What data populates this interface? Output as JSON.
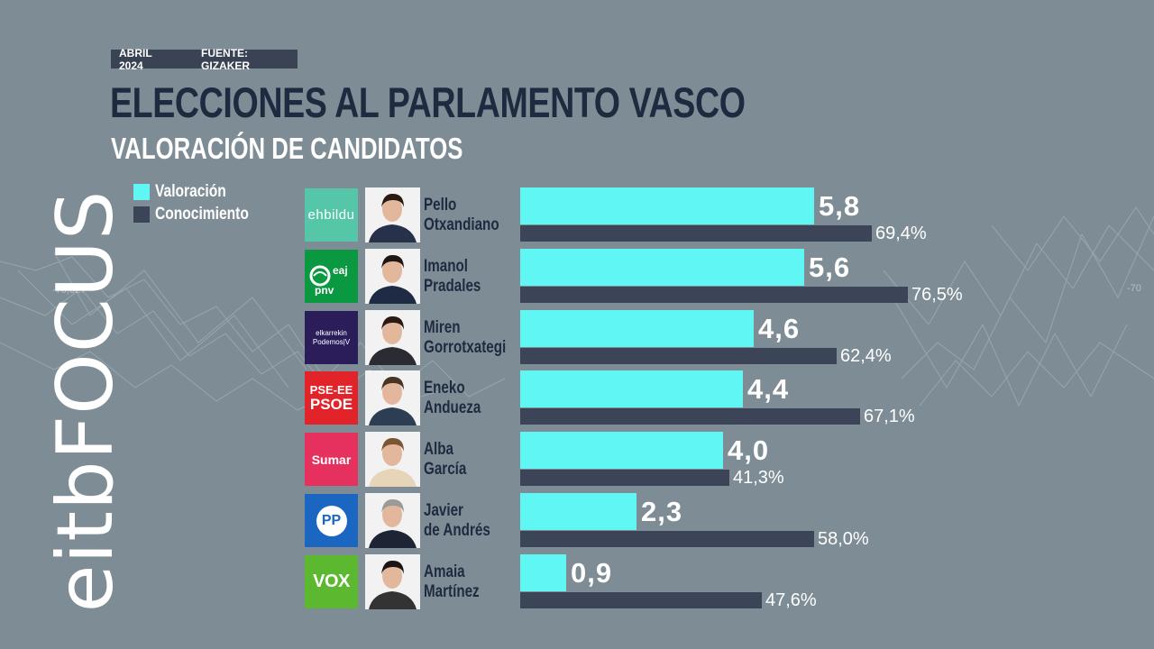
{
  "header": {
    "date": "ABRIL 2024",
    "source": "FUENTE: GIZAKER",
    "title": "ELECCIONES AL PARLAMENTO VASCO",
    "subtitle": "VALORACIÓN DE CANDIDATOS"
  },
  "brand": {
    "logo_text": "eitbFOCUS"
  },
  "colors": {
    "valoracion": "#5ff6f4",
    "conocimiento": "#3c4457",
    "title": "#1e2a40",
    "background": "#7e8d95"
  },
  "candidates": [
    {
      "party": "ehbildu",
      "party_color": "#55c6a8",
      "first": "Pello",
      "last": "Otxandiano",
      "valoracion": 5.8,
      "valoracion_label": "5,8",
      "conocimiento": 69.4,
      "conocimiento_label": "69,4%"
    },
    {
      "party": "eaj pnv",
      "party_color": "#0a9940",
      "first": "Imanol",
      "last": "Pradales",
      "valoracion": 5.6,
      "valoracion_label": "5,6",
      "conocimiento": 76.5,
      "conocimiento_label": "76,5%"
    },
    {
      "party": "elkarrekin Podemos",
      "party_color": "#2a1d5a",
      "first": "Miren",
      "last": "Gorrotxategi",
      "valoracion": 4.6,
      "valoracion_label": "4,6",
      "conocimiento": 62.4,
      "conocimiento_label": "62,4%"
    },
    {
      "party": "PSE-EE PSOE",
      "party_color": "#e3232a",
      "first": "Eneko",
      "last": "Andueza",
      "valoracion": 4.4,
      "valoracion_label": "4,4",
      "conocimiento": 67.1,
      "conocimiento_label": "67,1%"
    },
    {
      "party": "Sumar",
      "party_color": "#e6305e",
      "first": "Alba",
      "last": "García",
      "valoracion": 4.0,
      "valoracion_label": "4,0",
      "conocimiento": 41.3,
      "conocimiento_label": "41,3%"
    },
    {
      "party": "PP",
      "party_color": "#1a66c0",
      "first": "Javier",
      "last": "de Andrés",
      "valoracion": 2.3,
      "valoracion_label": "2,3",
      "conocimiento": 58.0,
      "conocimiento_label": "58,0%"
    },
    {
      "party": "VOX",
      "party_color": "#5cb82e",
      "first": "Amaia",
      "last": "Martínez",
      "valoracion": 0.9,
      "valoracion_label": "0,9",
      "conocimiento": 47.6,
      "conocimiento_label": "47,6%"
    }
  ],
  "chart_data": {
    "type": "bar",
    "title": "ELECCIONES AL PARLAMENTO VASCO",
    "subtitle": "VALORACIÓN DE CANDIDATOS",
    "categories": [
      "Pello Otxandiano",
      "Imanol Pradales",
      "Miren Gorrotxategi",
      "Eneko Andueza",
      "Alba García",
      "Javier de Andrés",
      "Amaia Martínez"
    ],
    "series": [
      {
        "name": "Valoración",
        "values": [
          5.8,
          5.6,
          4.6,
          4.4,
          4.0,
          2.3,
          0.9
        ]
      },
      {
        "name": "Conocimiento",
        "values": [
          69.4,
          76.5,
          62.4,
          67.1,
          41.3,
          58.0,
          47.6
        ]
      }
    ],
    "legend": [
      "Valoración",
      "Conocimiento"
    ],
    "legend_position": "top-left",
    "orientation": "horizontal",
    "grid": false
  }
}
